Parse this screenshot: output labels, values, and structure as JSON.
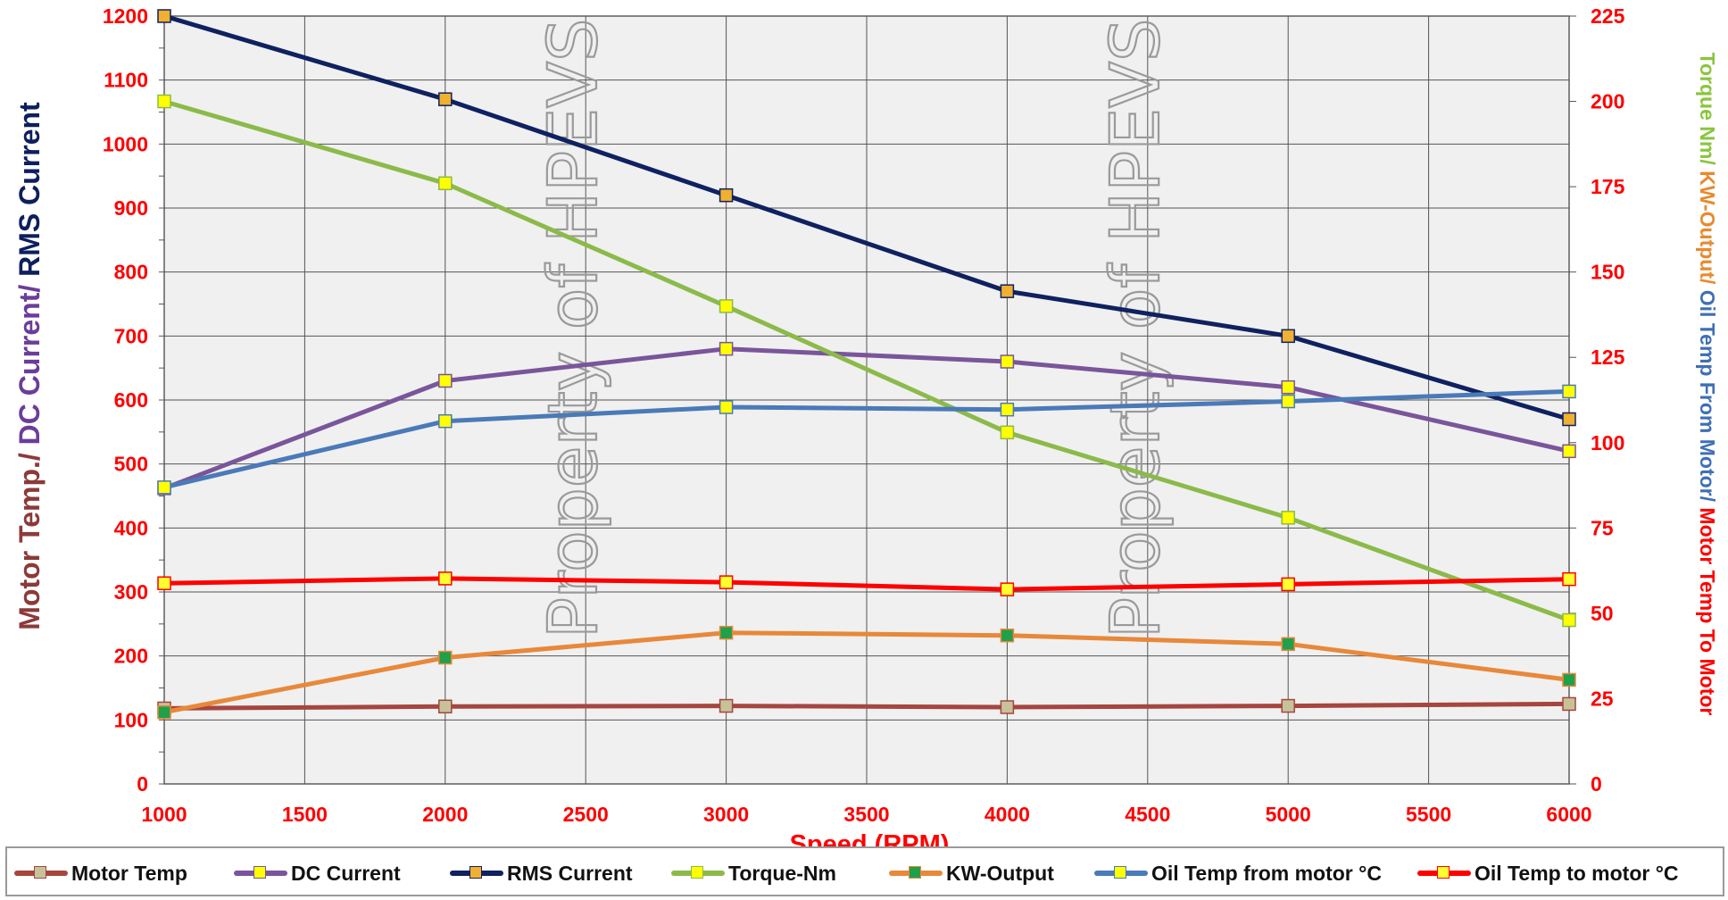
{
  "chart_data": {
    "type": "line",
    "xlabel": "Speed (RPM)",
    "ylabel_left_parts": [
      {
        "text": "Motor Temp./ ",
        "color": "#8b3a3a"
      },
      {
        "text": "DC Current/ ",
        "color": "#6a3d9a"
      },
      {
        "text": "RMS Current",
        "color": "#0d1f5c"
      }
    ],
    "ylabel_right_parts": [
      {
        "text": "Torque Nm/ ",
        "color": "#8ac53e"
      },
      {
        "text": "KW-Output/ ",
        "color": "#e88a2e"
      },
      {
        "text": "Oil Temp From Motor/ ",
        "color": "#3f6fb5"
      },
      {
        "text": "Motor Temp To Motor",
        "color": "#ff0000"
      }
    ],
    "xlim": [
      1000,
      6000
    ],
    "x_ticks": [
      "1000",
      "1500",
      "2000",
      "2500",
      "3000",
      "3500",
      "4000",
      "4500",
      "5000",
      "5500",
      "6000"
    ],
    "ylim_left": [
      0,
      1200
    ],
    "y_ticks_left": [
      "0",
      "100",
      "200",
      "300",
      "400",
      "500",
      "600",
      "700",
      "800",
      "900",
      "1000",
      "1100",
      "1200"
    ],
    "ylim_right": [
      0,
      225
    ],
    "y_ticks_right": [
      "0",
      "25",
      "50",
      "75",
      "100",
      "125",
      "150",
      "175",
      "200",
      "225"
    ],
    "grid": true,
    "legend_position": "bottom",
    "x": [
      1000,
      2000,
      3000,
      4000,
      5000,
      6000
    ],
    "series": [
      {
        "name": "Motor Temp",
        "axis": "left",
        "color": "#a5463f",
        "marker": "#c8c29a",
        "values": [
          118,
          121,
          122,
          120,
          122,
          125
        ]
      },
      {
        "name": "DC Current",
        "axis": "left",
        "color": "#7a559b",
        "marker": "#ffff00",
        "values": [
          462,
          630,
          680,
          660,
          620,
          520
        ]
      },
      {
        "name": "RMS Current",
        "axis": "left",
        "color": "#0f2160",
        "marker": "#f0b030",
        "values": [
          1200,
          1070,
          920,
          770,
          700,
          570
        ]
      },
      {
        "name": "Torque-Nm",
        "axis": "right",
        "color": "#8cba4a",
        "marker": "#ffff00",
        "values": [
          200,
          176,
          140,
          103,
          78,
          48
        ]
      },
      {
        "name": "KW-Output",
        "axis": "right",
        "color": "#e8883a",
        "marker": "#1fa04a",
        "values": [
          21,
          37,
          44.3,
          43.5,
          41,
          30.5
        ]
      },
      {
        "name": "Oil Temp from motor °C",
        "axis": "right",
        "color": "#4a7ab8",
        "marker": "#ffff00",
        "values": [
          86.9,
          106.3,
          110.4,
          109.7,
          112.1,
          115
        ]
      },
      {
        "name": "Oil Temp to motor °C",
        "axis": "right",
        "color": "#ff0000",
        "marker": "#ffff30",
        "values": [
          58.8,
          60.2,
          59.1,
          57,
          58.5,
          60
        ]
      }
    ],
    "watermark_text": "Property of HPEVS"
  }
}
